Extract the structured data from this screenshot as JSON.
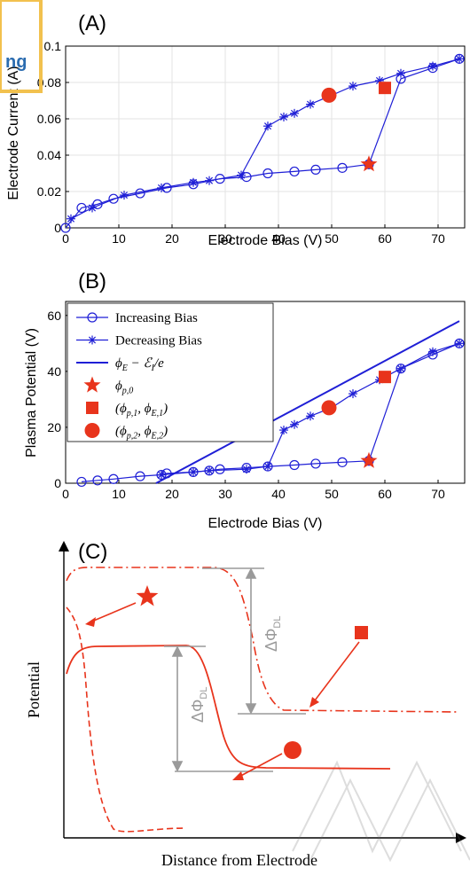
{
  "chart_data": [
    {
      "panel": "(A)",
      "type": "line",
      "xlabel": "Electrode Bias (V)",
      "ylabel": "Electrode Current (A)",
      "xlim": [
        0,
        75
      ],
      "ylim": [
        0,
        0.1
      ],
      "xticks": [
        0,
        10,
        20,
        30,
        40,
        50,
        60,
        70
      ],
      "yticks": [
        0,
        0.02,
        0.04,
        0.06,
        0.08,
        0.1
      ],
      "ytick_labels": [
        "0",
        "0.02",
        "0.04",
        "0.06",
        "0.08",
        "0.1"
      ],
      "grid": true,
      "series": [
        {
          "marker": "circle",
          "color": "#1f1fd6",
          "x": [
            0,
            3,
            6,
            9,
            14,
            19,
            24,
            29,
            34,
            38,
            43,
            47,
            52,
            57,
            63,
            69,
            74
          ],
          "y": [
            0,
            0.011,
            0.013,
            0.016,
            0.019,
            0.022,
            0.024,
            0.027,
            0.028,
            0.03,
            0.031,
            0.032,
            0.033,
            0.035,
            0.082,
            0.088,
            0.093
          ]
        },
        {
          "marker": "asterisk",
          "color": "#1f1fd6",
          "x": [
            74,
            69,
            63,
            59,
            54,
            50,
            46,
            43,
            41,
            38,
            33,
            27,
            24,
            18,
            11,
            5,
            1
          ],
          "y": [
            0.093,
            0.089,
            0.085,
            0.081,
            0.078,
            0.073,
            0.068,
            0.063,
            0.061,
            0.056,
            0.029,
            0.026,
            0.025,
            0.022,
            0.018,
            0.011,
            0.005
          ]
        }
      ],
      "highlights": [
        {
          "shape": "star",
          "x": 57,
          "y": 0.035
        },
        {
          "shape": "square",
          "x": 60,
          "y": 0.077
        },
        {
          "shape": "circle",
          "x": 49.5,
          "y": 0.073
        }
      ]
    },
    {
      "panel": "(B)",
      "type": "line",
      "xlabel": "Electrode Bias (V)",
      "ylabel": "Plasma Potential (V)",
      "xlim": [
        0,
        75
      ],
      "ylim": [
        0,
        65
      ],
      "xticks": [
        0,
        10,
        20,
        30,
        40,
        50,
        60,
        70
      ],
      "yticks": [
        0,
        20,
        40,
        60
      ],
      "legend_position": "top-left",
      "series": [
        {
          "name": "Increasing Bias",
          "marker": "circle",
          "color": "#1f1fd6",
          "x": [
            3,
            6,
            9,
            14,
            18,
            19,
            24,
            27,
            29,
            34,
            38,
            43,
            47,
            52,
            57,
            63,
            69,
            74
          ],
          "y": [
            0.5,
            1,
            1.5,
            2.5,
            3,
            3.5,
            4,
            4.5,
            5,
            5.5,
            6,
            6.5,
            7,
            7.5,
            8,
            41,
            46,
            50
          ]
        },
        {
          "name": "Decreasing Bias",
          "marker": "asterisk",
          "color": "#1f1fd6",
          "x": [
            74,
            69,
            63,
            59,
            54,
            50,
            46,
            43,
            41,
            38,
            34,
            27,
            24,
            18
          ],
          "y": [
            50,
            47,
            41,
            37,
            32,
            27,
            24,
            21,
            19,
            6,
            5,
            4.5,
            4,
            3
          ]
        },
        {
          "name": "ϕ_E − ℰ_I/e",
          "marker": "none",
          "color": "#1f1fd6",
          "x": [
            17,
            74
          ],
          "y": [
            0,
            58
          ]
        }
      ],
      "highlights": [
        {
          "name": "ϕ_{p,0}",
          "shape": "star",
          "x": 57,
          "y": 8
        },
        {
          "name": "(ϕ_{p,1}, ϕ_{E,1})",
          "shape": "square",
          "x": 60,
          "y": 38
        },
        {
          "name": "(ϕ_{p,2}, ϕ_{E,2})",
          "shape": "circle",
          "x": 49.5,
          "y": 27
        }
      ]
    },
    {
      "panel": "(C)",
      "type": "line",
      "xlabel": "Distance from Electrode",
      "ylabel": "Potential",
      "annotations": [
        "ΔΦ",
        "DL",
        "ΔΦ",
        "DL"
      ],
      "series": [
        {
          "style": "dashed",
          "color": "#e8341c"
        },
        {
          "style": "solid",
          "color": "#e8341c"
        },
        {
          "style": "dash-dot",
          "color": "#e8341c"
        }
      ]
    }
  ],
  "legend_entries": [
    {
      "main": "Increasing Bias"
    },
    {
      "main": "Decreasing Bias"
    },
    {
      "main": "ϕ",
      "sub": "E",
      "mid": " − ℰ",
      "sub2": "I",
      "tail": "/e"
    },
    {
      "main": "ϕ",
      "sub": "p,0"
    },
    {
      "main": "(ϕ",
      "sub": "p,1",
      "mid": ", ϕ",
      "sub2": "E,1",
      "tail": ")"
    },
    {
      "main": "(ϕ",
      "sub": "p,2",
      "mid": ", ϕ",
      "sub2": "E,2",
      "tail": ")"
    }
  ],
  "stamp_text": "ng",
  "colors": {
    "data": "#1f1fd6",
    "highlight": "#e8341c",
    "guide": "#9a9a9a",
    "stamp_border": "#f2c14e"
  }
}
